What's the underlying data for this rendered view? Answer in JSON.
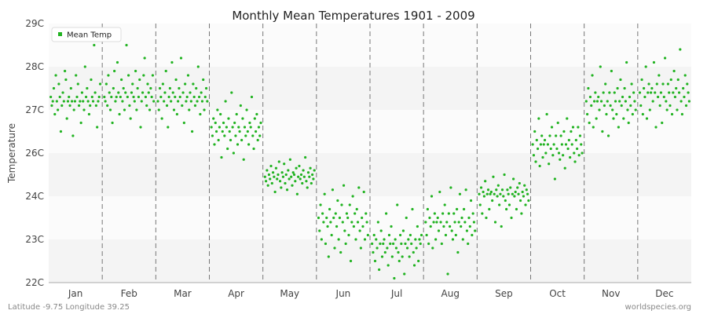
{
  "footer": {
    "left": "Latitude -9.75 Longitude 39.25",
    "right": "worldspecies.org"
  },
  "chart_data": {
    "type": "scatter",
    "title": "Monthly Mean Temperatures 1901 - 2009",
    "ylabel": "Temperature",
    "xlabel": "",
    "categories": [
      "Jan",
      "Feb",
      "Mar",
      "Apr",
      "May",
      "Jun",
      "Jul",
      "Aug",
      "Sep",
      "Oct",
      "Nov",
      "Dec"
    ],
    "y_ticks": [
      "22C",
      "23C",
      "24C",
      "26C",
      "27C",
      "28C",
      "29C"
    ],
    "ylim": [
      22,
      29
    ],
    "legend": {
      "label": "Mean Temp",
      "position": "top-left"
    },
    "grid": true,
    "colors": {
      "points": "#22b322",
      "band_light": "#f4f4f4",
      "band_white": "#fbfbfb",
      "divider": "#777777"
    },
    "series": [
      {
        "name": "Mean Temp",
        "by_month": [
          [
            27.3,
            27.1,
            27.2,
            27.5,
            26.9,
            27.8,
            27.2,
            27.0,
            27.6,
            27.3,
            26.5,
            27.1,
            27.4,
            27.2,
            27.9,
            27.7,
            26.8,
            27.2,
            27.3,
            27.1,
            27.5,
            27.2,
            26.4,
            27.0,
            27.2,
            27.8,
            27.3,
            27.6,
            27.1,
            27.2,
            26.7,
            27.4,
            27.2,
            27.0,
            28.0,
            27.3,
            27.5,
            27.2,
            26.9,
            27.1,
            27.7,
            27.3,
            27.2,
            28.5,
            27.4,
            27.1,
            26.6,
            27.2,
            27.3,
            27.6
          ],
          [
            27.3,
            27.2,
            27.6,
            27.1,
            27.8,
            27.4,
            27.0,
            27.3,
            26.7,
            27.5,
            27.9,
            27.2,
            27.3,
            28.1,
            27.4,
            26.9,
            27.3,
            27.7,
            27.2,
            27.5,
            27.0,
            27.4,
            28.5,
            27.3,
            27.8,
            27.1,
            26.8,
            27.4,
            27.6,
            27.3,
            27.2,
            27.9,
            27.0,
            27.5,
            27.3,
            27.7,
            26.6,
            27.2,
            27.4,
            27.8,
            28.2,
            27.3,
            27.1,
            27.6,
            27.4,
            27.0,
            27.5,
            27.3,
            27.8,
            27.2
          ],
          [
            27.2,
            27.0,
            27.5,
            27.3,
            26.8,
            27.6,
            27.2,
            27.4,
            27.9,
            27.1,
            26.6,
            27.3,
            27.5,
            27.2,
            28.1,
            27.4,
            27.0,
            27.3,
            27.7,
            26.9,
            27.2,
            27.5,
            27.3,
            28.2,
            27.1,
            27.4,
            26.7,
            27.6,
            27.2,
            27.3,
            27.8,
            27.0,
            27.4,
            27.2,
            26.5,
            27.6,
            27.3,
            27.1,
            27.5,
            27.2,
            28.0,
            27.3,
            26.9,
            27.4,
            27.2,
            27.7,
            27.0,
            27.3,
            27.5,
            27.2
          ],
          [
            26.6,
            26.4,
            26.8,
            26.2,
            26.7,
            26.5,
            27.0,
            26.3,
            26.6,
            26.9,
            25.8,
            26.5,
            26.7,
            26.4,
            27.2,
            26.6,
            26.1,
            26.8,
            26.5,
            26.3,
            27.4,
            26.6,
            26.0,
            26.7,
            26.4,
            26.9,
            26.2,
            26.6,
            26.5,
            27.1,
            26.3,
            26.8,
            25.7,
            26.6,
            26.4,
            27.0,
            26.5,
            26.2,
            26.7,
            26.6,
            27.3,
            26.4,
            26.1,
            26.8,
            26.5,
            26.9,
            26.3,
            26.6,
            26.4,
            26.7
          ],
          [
            24.9,
            24.7,
            25.2,
            24.5,
            25.0,
            24.8,
            25.4,
            24.6,
            25.1,
            24.9,
            24.2,
            25.3,
            24.8,
            25.0,
            25.6,
            24.7,
            24.4,
            25.1,
            24.9,
            25.5,
            24.6,
            25.0,
            24.3,
            25.2,
            24.8,
            25.7,
            24.9,
            24.5,
            25.1,
            25.0,
            24.7,
            25.3,
            24.1,
            24.9,
            25.4,
            24.8,
            25.0,
            24.6,
            25.2,
            24.9,
            25.8,
            24.7,
            24.4,
            25.1,
            24.9,
            25.3,
            24.6,
            25.0,
            24.8,
            25.2
          ],
          [
            23.5,
            23.2,
            23.8,
            23.0,
            23.6,
            23.4,
            24.1,
            22.9,
            23.5,
            23.3,
            22.6,
            23.7,
            23.4,
            23.1,
            24.3,
            23.5,
            22.8,
            23.6,
            23.3,
            23.9,
            23.0,
            23.5,
            22.7,
            23.8,
            23.4,
            24.5,
            23.2,
            22.9,
            23.6,
            23.5,
            23.1,
            23.8,
            22.5,
            23.4,
            24.0,
            23.3,
            23.6,
            23.0,
            23.7,
            23.4,
            24.4,
            23.2,
            22.8,
            23.5,
            23.3,
            24.2,
            23.0,
            23.6,
            23.4,
            23.1
          ],
          [
            22.9,
            22.7,
            23.1,
            22.5,
            23.0,
            22.8,
            23.4,
            22.3,
            22.9,
            23.2,
            22.6,
            22.9,
            23.0,
            22.7,
            23.6,
            22.8,
            22.4,
            23.1,
            22.9,
            23.3,
            22.6,
            22.9,
            22.1,
            23.0,
            22.8,
            23.8,
            22.7,
            22.5,
            23.1,
            22.9,
            22.6,
            23.2,
            22.2,
            22.9,
            23.5,
            22.8,
            23.0,
            22.6,
            23.1,
            22.9,
            23.7,
            22.7,
            22.4,
            23.0,
            22.8,
            23.3,
            22.5,
            23.0,
            22.9,
            23.1
          ],
          [
            23.4,
            23.1,
            23.7,
            22.9,
            23.5,
            23.3,
            24.0,
            22.8,
            23.4,
            23.6,
            23.0,
            23.4,
            23.5,
            23.2,
            24.2,
            23.4,
            22.9,
            23.6,
            23.3,
            23.8,
            23.1,
            23.4,
            22.2,
            23.6,
            23.3,
            24.4,
            23.2,
            23.0,
            23.6,
            23.4,
            23.1,
            23.7,
            22.7,
            23.4,
            24.1,
            23.3,
            23.5,
            23.0,
            23.7,
            23.4,
            24.3,
            23.2,
            22.9,
            23.5,
            23.3,
            23.9,
            23.1,
            23.6,
            23.4,
            23.2
          ],
          [
            24.1,
            23.8,
            24.4,
            23.6,
            24.2,
            24.0,
            24.7,
            23.5,
            24.1,
            24.3,
            23.7,
            24.1,
            24.2,
            23.9,
            24.9,
            24.1,
            23.4,
            24.3,
            24.0,
            24.5,
            23.8,
            24.1,
            23.3,
            24.3,
            24.0,
            25.0,
            23.9,
            23.7,
            24.3,
            24.1,
            23.8,
            24.4,
            23.5,
            24.1,
            24.8,
            24.0,
            24.2,
            23.7,
            24.4,
            24.1,
            24.6,
            23.9,
            23.6,
            24.2,
            24.0,
            24.5,
            23.8,
            24.3,
            24.1,
            23.9
          ],
          [
            26.2,
            25.9,
            26.5,
            25.6,
            26.3,
            26.1,
            26.8,
            25.4,
            26.2,
            26.4,
            25.8,
            26.2,
            26.3,
            26.0,
            26.9,
            26.2,
            25.5,
            26.4,
            26.1,
            26.6,
            25.9,
            26.2,
            24.8,
            26.4,
            26.1,
            26.7,
            26.0,
            25.7,
            26.4,
            26.2,
            25.9,
            26.5,
            25.3,
            26.2,
            26.8,
            26.1,
            26.3,
            25.8,
            26.5,
            26.2,
            26.6,
            26.0,
            25.6,
            26.3,
            26.1,
            26.6,
            25.9,
            26.4,
            26.2,
            26.0
          ],
          [
            27.2,
            26.9,
            27.5,
            26.7,
            27.3,
            27.1,
            27.8,
            26.6,
            27.2,
            27.4,
            26.8,
            27.2,
            27.3,
            27.0,
            28.0,
            27.2,
            26.5,
            27.4,
            27.1,
            27.6,
            26.9,
            27.2,
            26.4,
            27.4,
            27.1,
            27.9,
            27.0,
            26.8,
            27.4,
            27.2,
            26.9,
            27.5,
            26.6,
            27.2,
            27.7,
            27.1,
            27.3,
            26.8,
            27.5,
            27.2,
            28.1,
            27.0,
            26.7,
            27.3,
            27.1,
            27.6,
            26.9,
            27.4,
            27.2,
            27.0
          ],
          [
            27.4,
            27.1,
            27.7,
            26.9,
            27.5,
            27.3,
            28.0,
            26.8,
            27.4,
            27.6,
            27.0,
            27.4,
            27.5,
            27.2,
            28.1,
            27.4,
            26.6,
            27.6,
            27.3,
            27.8,
            27.1,
            27.4,
            26.7,
            27.6,
            27.3,
            28.2,
            27.2,
            27.0,
            27.6,
            27.4,
            27.1,
            27.7,
            26.9,
            27.4,
            27.9,
            27.3,
            27.5,
            27.0,
            27.7,
            27.4,
            28.4,
            27.2,
            26.9,
            27.5,
            27.3,
            27.8,
            27.1,
            27.6,
            27.4,
            27.2
          ]
        ]
      }
    ]
  }
}
